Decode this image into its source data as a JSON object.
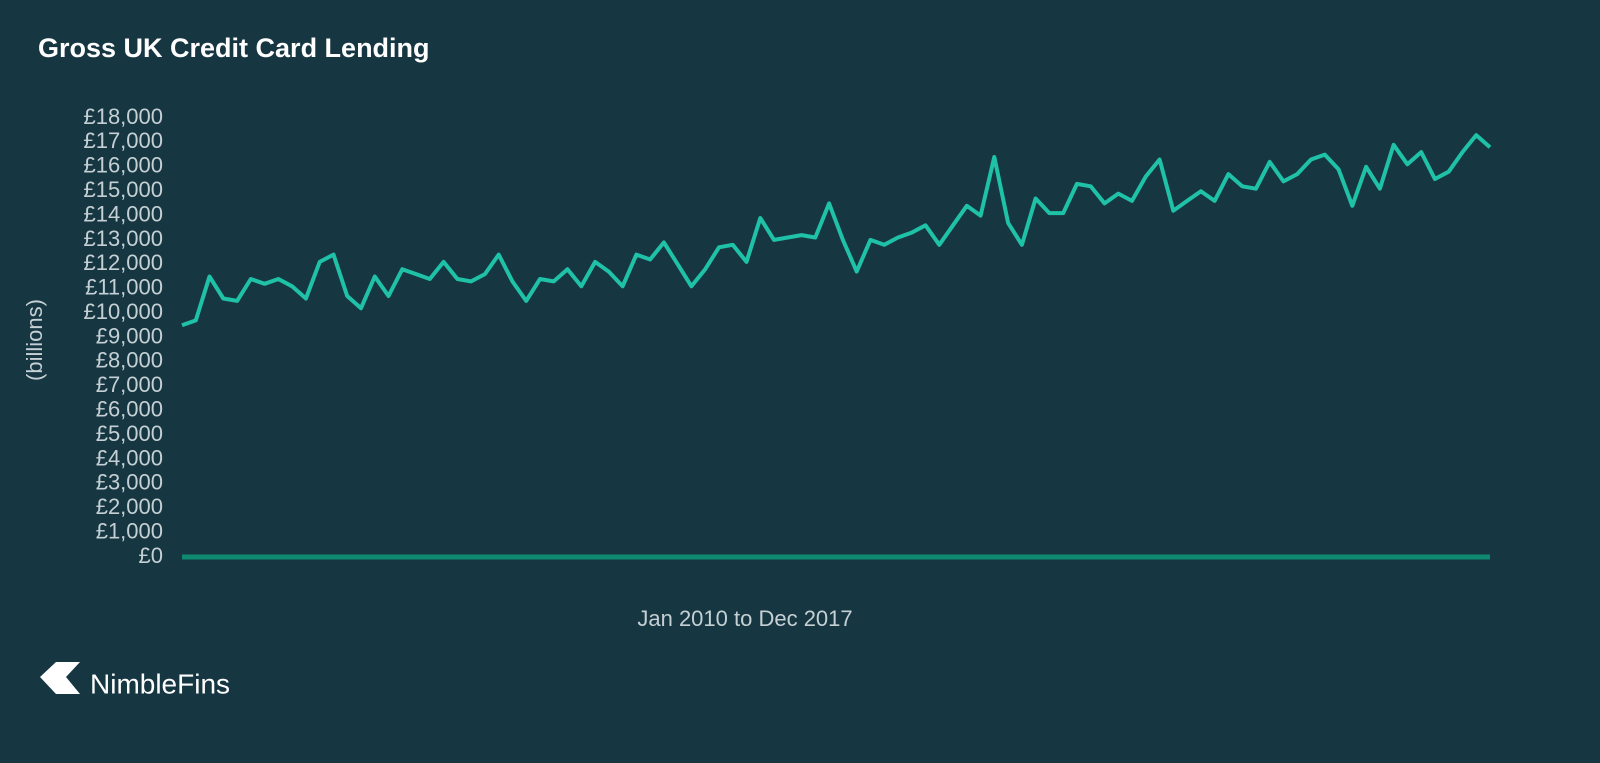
{
  "chart_data": {
    "type": "line",
    "title": "Gross UK Credit Card Lending",
    "ylabel": "(billions)",
    "xlabel": "Jan 2010 to Dec 2017",
    "categories": [
      null,
      null,
      null,
      null,
      null,
      null,
      null,
      null,
      null,
      null,
      null,
      null,
      null,
      null,
      null,
      null,
      null,
      null,
      null,
      null,
      null,
      null,
      null,
      null,
      null,
      null,
      null,
      null,
      null,
      null,
      null,
      null,
      null,
      null,
      null,
      null,
      null,
      null,
      null,
      null,
      null,
      null,
      null,
      null,
      null,
      null,
      null,
      null,
      null,
      null,
      null,
      null,
      null,
      null,
      null,
      null,
      null,
      null,
      null,
      null,
      null,
      null,
      null,
      null,
      null,
      null,
      null,
      null,
      null,
      null,
      null,
      null,
      null,
      null,
      null,
      null,
      null,
      null,
      null,
      null,
      null,
      null,
      null,
      null,
      null,
      null,
      null,
      null,
      null,
      null,
      null,
      null,
      null,
      null,
      null,
      null
    ],
    "values": [
      9500,
      9700,
      11500,
      10600,
      10500,
      11400,
      11200,
      11400,
      11100,
      10600,
      12100,
      12400,
      10700,
      10200,
      11500,
      10700,
      11800,
      11600,
      11400,
      12100,
      11400,
      11300,
      11600,
      12400,
      11300,
      10500,
      11400,
      11300,
      11800,
      11100,
      12100,
      11700,
      11100,
      12400,
      12200,
      12900,
      12000,
      11100,
      11800,
      12700,
      12800,
      12100,
      13900,
      13000,
      13100,
      13200,
      13100,
      14500,
      13000,
      11700,
      13000,
      12800,
      13100,
      13300,
      13600,
      12800,
      13600,
      14400,
      14000,
      16400,
      13700,
      12800,
      14700,
      14100,
      14100,
      15300,
      15200,
      14500,
      14900,
      14600,
      15600,
      16300,
      14200,
      14600,
      15000,
      14600,
      15700,
      15200,
      15100,
      16200,
      15400,
      15700,
      16300,
      16500,
      15900,
      14400,
      16000,
      15100,
      16900,
      16100,
      16600,
      15500,
      15800,
      16600,
      17300,
      16800
    ],
    "color": "#1fc1a7",
    "ylim": [
      0,
      18000
    ],
    "yticks": [
      {
        "value": 0,
        "label": "£0"
      },
      {
        "value": 1000,
        "label": "£1,000"
      },
      {
        "value": 2000,
        "label": "£2,000"
      },
      {
        "value": 3000,
        "label": "£3,000"
      },
      {
        "value": 4000,
        "label": "£4,000"
      },
      {
        "value": 5000,
        "label": "£5,000"
      },
      {
        "value": 6000,
        "label": "£6,000"
      },
      {
        "value": 7000,
        "label": "£7,000"
      },
      {
        "value": 8000,
        "label": "£8,000"
      },
      {
        "value": 9000,
        "label": "£9,000"
      },
      {
        "value": 10000,
        "label": "£10,000"
      },
      {
        "value": 11000,
        "label": "£11,000"
      },
      {
        "value": 12000,
        "label": "£12,000"
      },
      {
        "value": 13000,
        "label": "£13,000"
      },
      {
        "value": 14000,
        "label": "£14,000"
      },
      {
        "value": 15000,
        "label": "£15,000"
      },
      {
        "value": 16000,
        "label": "£16,000"
      },
      {
        "value": 17000,
        "label": "£17,000"
      },
      {
        "value": 18000,
        "label": "£18,000"
      }
    ],
    "grid": false
  },
  "logo": "NimbleFins"
}
